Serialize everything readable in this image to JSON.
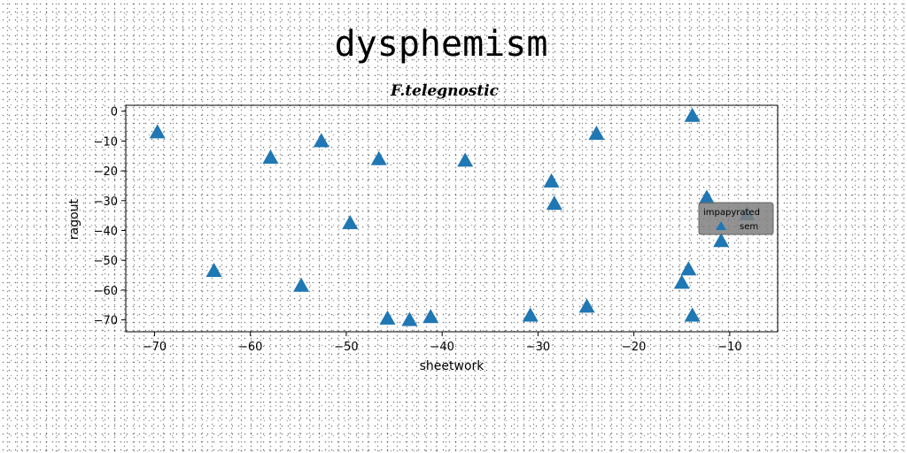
{
  "chart_data": {
    "type": "scatter",
    "title": "dysphemism",
    "subtitle": "F.telegnostic",
    "xlabel": "sheetwork",
    "ylabel": "ragout",
    "xlim": [
      -73,
      -5
    ],
    "ylim": [
      -74,
      2
    ],
    "xticks": [
      -70,
      -60,
      -50,
      -40,
      -30,
      -20,
      -10
    ],
    "yticks": [
      0,
      -10,
      -20,
      -30,
      -40,
      -50,
      -60,
      -70
    ],
    "grid": false,
    "legend": {
      "title": "impapyrated",
      "placement": "right",
      "entries": [
        "sem"
      ]
    },
    "series": [
      {
        "name": "sem",
        "marker": "triangle",
        "color": "#1f77b4",
        "points": [
          {
            "x": -69.7,
            "y": -7
          },
          {
            "x": -63.8,
            "y": -53.5
          },
          {
            "x": -57.9,
            "y": -15.5
          },
          {
            "x": -54.7,
            "y": -58.5
          },
          {
            "x": -52.6,
            "y": -10
          },
          {
            "x": -49.6,
            "y": -37.5
          },
          {
            "x": -46.6,
            "y": -16
          },
          {
            "x": -45.7,
            "y": -69.5
          },
          {
            "x": -43.4,
            "y": -70
          },
          {
            "x": -41.2,
            "y": -69
          },
          {
            "x": -37.6,
            "y": -16.5
          },
          {
            "x": -30.8,
            "y": -68.5
          },
          {
            "x": -28.6,
            "y": -23.5
          },
          {
            "x": -28.3,
            "y": -31
          },
          {
            "x": -24.9,
            "y": -65.5
          },
          {
            "x": -23.9,
            "y": -7.5
          },
          {
            "x": -15.0,
            "y": -57.5
          },
          {
            "x": -14.3,
            "y": -53
          },
          {
            "x": -13.9,
            "y": -1.5
          },
          {
            "x": -13.9,
            "y": -68.5
          },
          {
            "x": -12.4,
            "y": -29
          },
          {
            "x": -10.9,
            "y": -43.5
          },
          {
            "x": -8.2,
            "y": -34.5
          }
        ]
      }
    ]
  }
}
